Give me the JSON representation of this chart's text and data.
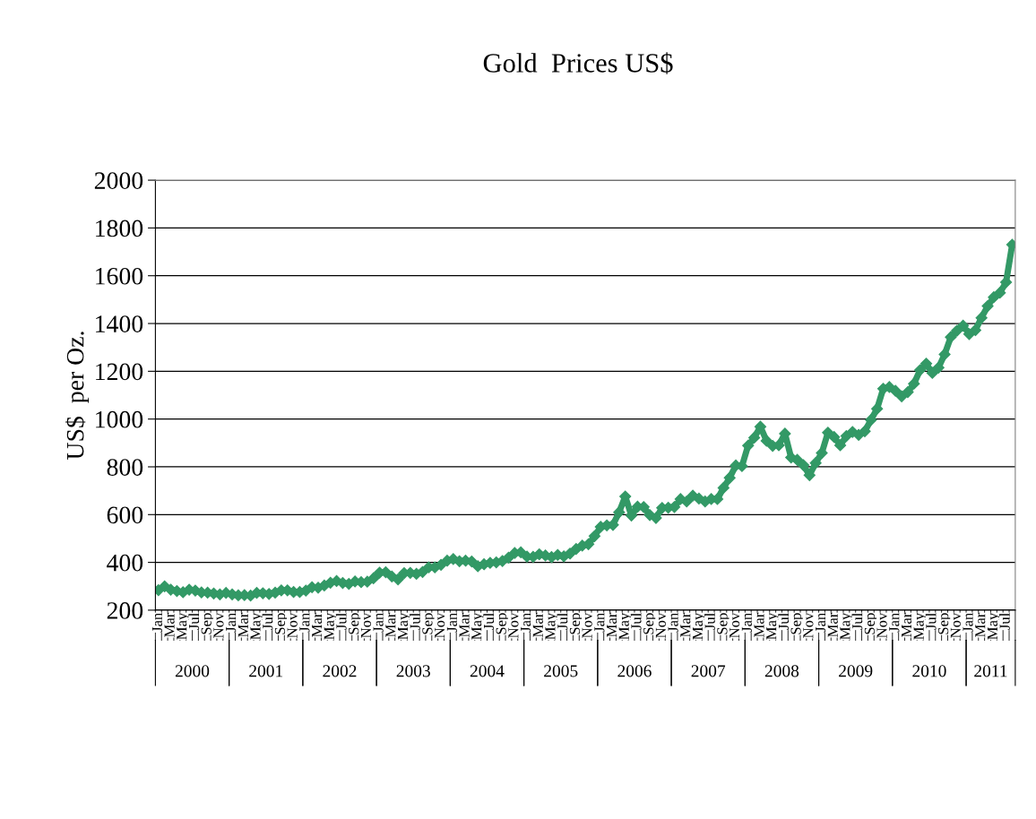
{
  "chart_data": {
    "type": "line",
    "title": "Gold  Prices US$",
    "ylabel": "US$  per Oz.",
    "categories": [
      "Jan",
      null,
      "Mar",
      null,
      "May",
      null,
      "Jul",
      null,
      "Sep",
      null,
      "Nov",
      null,
      "Jan",
      null,
      "Mar",
      null,
      "May",
      null,
      "Jul",
      null,
      "Sep",
      null,
      "Nov",
      null,
      "Jan",
      null,
      "Mar",
      null,
      "May",
      null,
      "Jul",
      null,
      "Sep",
      null,
      "Nov",
      null,
      "Jan",
      null,
      "Mar",
      null,
      "May",
      null,
      "Jul",
      null,
      "Sep",
      null,
      "Nov",
      null,
      "Jan",
      null,
      "Mar",
      null,
      "May",
      null,
      "Jul",
      null,
      "Sep",
      null,
      "Nov",
      null,
      "Jan",
      null,
      "Mar",
      null,
      "May",
      null,
      "Jul",
      null,
      "Sep",
      null,
      "Nov",
      null,
      "Jan",
      null,
      "Mar",
      null,
      "May",
      null,
      "Jul",
      null,
      "Sep",
      null,
      "Nov",
      null,
      "Jan",
      null,
      "Mar",
      null,
      "May",
      null,
      "Jul",
      null,
      "Sep",
      null,
      "Nov",
      null,
      "Jan",
      null,
      "Mar",
      null,
      "May",
      null,
      "Jul",
      null,
      "Sep",
      null,
      "Nov",
      null,
      "Jan",
      null,
      "Mar",
      null,
      "May",
      null,
      "Jul",
      null,
      "Sep",
      null,
      "Nov",
      null,
      "Jan",
      null,
      "Mar",
      null,
      "May",
      null,
      "Jul",
      null,
      "Sep",
      null,
      "Nov",
      null,
      "Jan",
      null,
      "Mar",
      null,
      "May",
      null,
      "Jul",
      null
    ],
    "series": [
      {
        "color": "#339966",
        "values": [
          284,
          300,
          286,
          280,
          275,
          286,
          282,
          274,
          273,
          270,
          266,
          272,
          266,
          262,
          263,
          261,
          272,
          271,
          268,
          273,
          283,
          283,
          276,
          276,
          282,
          296,
          294,
          303,
          315,
          322,
          314,
          310,
          320,
          317,
          319,
          333,
          357,
          359,
          341,
          329,
          355,
          356,
          352,
          360,
          379,
          379,
          390,
          407,
          414,
          405,
          407,
          404,
          384,
          392,
          398,
          400,
          406,
          420,
          439,
          442,
          424,
          423,
          434,
          429,
          422,
          431,
          425,
          437,
          456,
          470,
          476,
          510,
          549,
          555,
          557,
          610,
          676,
          596,
          633,
          632,
          598,
          586,
          628,
          629,
          632,
          665,
          655,
          679,
          667,
          655,
          665,
          665,
          712,
          754,
          806,
          803,
          889,
          922,
          968,
          909,
          888,
          890,
          939,
          839,
          829,
          807,
          765,
          816,
          858,
          943,
          925,
          890,
          929,
          946,
          934,
          949,
          996,
          1043,
          1127,
          1134,
          1118,
          1095,
          1113,
          1148,
          1205,
          1232,
          1193,
          1215,
          1271,
          1343,
          1370,
          1391,
          1356,
          1372,
          1424,
          1473,
          1510,
          1529,
          1573,
          1730
        ]
      }
    ],
    "annotations": [
      "2000",
      "2001",
      "2002",
      "2003",
      "2004",
      "2005",
      "2006",
      "2007",
      "2008",
      "2009",
      "2010",
      "2011"
    ],
    "ylim": [
      200,
      2000
    ],
    "yticks": [
      200,
      400,
      600,
      800,
      1000,
      1200,
      1400,
      1600,
      1800,
      2000
    ],
    "grid": "y",
    "marker": "diamond",
    "line_style": "solid"
  }
}
